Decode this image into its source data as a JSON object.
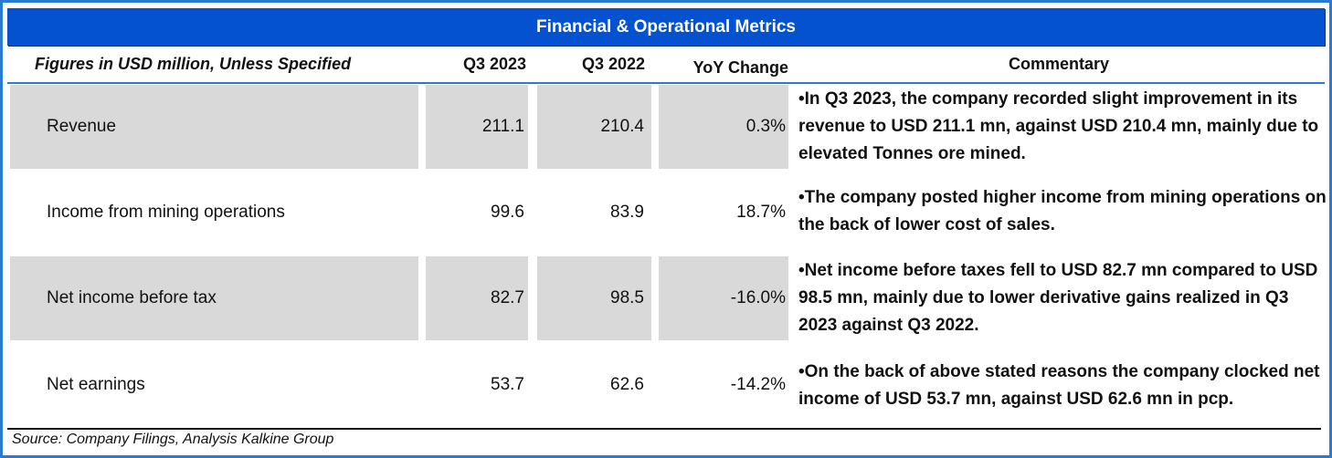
{
  "title": "Financial & Operational Metrics",
  "header": {
    "metric": "Figures in USD million, Unless Specified",
    "col1": "Q3 2023",
    "col2": "Q3 2022",
    "col3": "YoY Change",
    "commentary": "Commentary"
  },
  "rows": [
    {
      "label": "Revenue",
      "q3_2023": "211.1",
      "q3_2022": "210.4",
      "yoy": "0.3%",
      "commentary": "•In Q3 2023, the company recorded slight improvement in its revenue to USD 211.1 mn, against USD 210.4 mn, mainly due to elevated Tonnes ore mined."
    },
    {
      "label": "Income from mining operations",
      "q3_2023": "99.6",
      "q3_2022": "83.9",
      "yoy": "18.7%",
      "commentary": "•The company posted higher income from mining operations on the back of lower cost of sales."
    },
    {
      "label": "Net income before tax",
      "q3_2023": "82.7",
      "q3_2022": "98.5",
      "yoy": "-16.0%",
      "commentary": "•Net income before taxes fell to USD 82.7 mn compared to USD 98.5 mn, mainly due to lower derivative gains realized in Q3 2023 against Q3 2022."
    },
    {
      "label": "Net earnings",
      "q3_2023": "53.7",
      "q3_2022": "62.6",
      "yoy": "-14.2%",
      "commentary": "•On the back of above stated reasons the company clocked net income of USD 53.7 mn, against  USD 62.6 mn in pcp."
    }
  ],
  "source": "Source: Company Filings, Analysis Kalkine Group",
  "colors": {
    "title_bg": "#0452cf",
    "border": "#2a7ad0",
    "shaded_row": "#d9d9d9"
  }
}
